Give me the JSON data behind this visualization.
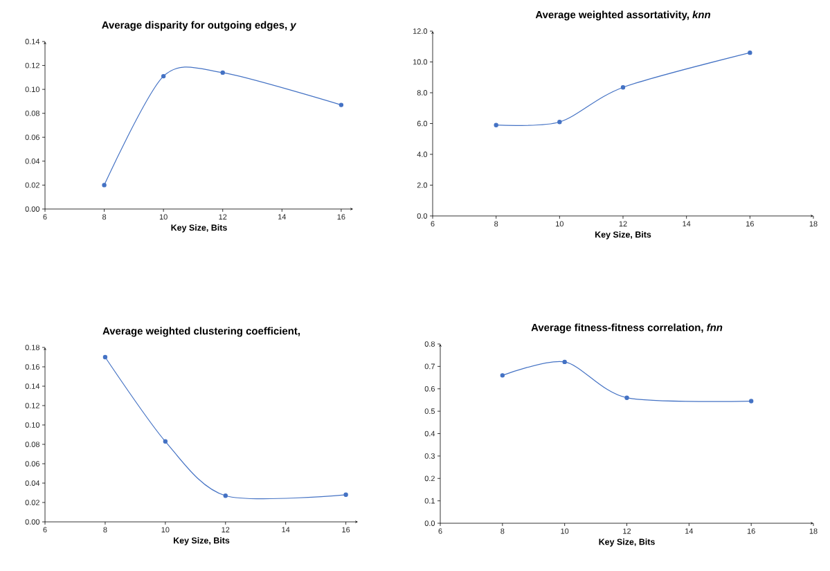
{
  "chart_data": [
    {
      "type": "line",
      "title": "Average disparity for outgoing edges, *y*",
      "xlabel": "Key Size, Bits",
      "x": [
        8,
        10,
        12,
        16
      ],
      "values": [
        0.02,
        0.111,
        0.114,
        0.087
      ],
      "color": "#4472c4",
      "marker": "circle",
      "xlim": [
        6,
        16.4
      ],
      "xticks": [
        6,
        8,
        10,
        12,
        14,
        16
      ],
      "ylim": [
        0,
        0.14
      ],
      "yticks": [
        {
          "value": 0,
          "label": "0.00"
        },
        {
          "value": 0.02,
          "label": "0.02"
        },
        {
          "value": 0.04,
          "label": "0.04"
        },
        {
          "value": 0.06,
          "label": "0.06"
        },
        {
          "value": 0.08,
          "label": "0.08"
        },
        {
          "value": 0.1,
          "label": "0.10"
        },
        {
          "value": 0.12,
          "label": "0.12"
        },
        {
          "value": 0.14,
          "label": "0.14"
        }
      ]
    },
    {
      "type": "line",
      "title": "Average weighted assortativity, *knn*",
      "xlabel": "Key Size, Bits",
      "x": [
        8,
        10,
        12,
        16
      ],
      "values": [
        5.9,
        6.1,
        8.35,
        10.6
      ],
      "color": "#4472c4",
      "marker": "circle",
      "xlim": [
        6,
        18
      ],
      "xticks": [
        6,
        8,
        10,
        12,
        14,
        16,
        18
      ],
      "ylim": [
        0,
        12
      ],
      "yticks": [
        {
          "value": 0,
          "label": "0.0"
        },
        {
          "value": 2,
          "label": "2.0"
        },
        {
          "value": 4,
          "label": "4.0"
        },
        {
          "value": 6,
          "label": "6.0"
        },
        {
          "value": 8,
          "label": "8.0"
        },
        {
          "value": 10,
          "label": "10.0"
        },
        {
          "value": 12,
          "label": "12.0"
        }
      ]
    },
    {
      "type": "line",
      "title": "Average weighted clustering coefficient,",
      "xlabel": "Key Size, Bits",
      "x": [
        8,
        10,
        12,
        16
      ],
      "values": [
        0.17,
        0.083,
        0.027,
        0.028
      ],
      "color": "#4472c4",
      "marker": "circle",
      "xlim": [
        6,
        16.4
      ],
      "xticks": [
        6,
        8,
        10,
        12,
        14,
        16
      ],
      "ylim": [
        0,
        0.18
      ],
      "yticks": [
        {
          "value": 0,
          "label": "0.00"
        },
        {
          "value": 0.02,
          "label": "0.02"
        },
        {
          "value": 0.04,
          "label": "0.04"
        },
        {
          "value": 0.06,
          "label": "0.06"
        },
        {
          "value": 0.08,
          "label": "0.08"
        },
        {
          "value": 0.1,
          "label": "0.10"
        },
        {
          "value": 0.12,
          "label": "0.12"
        },
        {
          "value": 0.14,
          "label": "0.14"
        },
        {
          "value": 0.16,
          "label": "0.16"
        },
        {
          "value": 0.18,
          "label": "0.18"
        }
      ]
    },
    {
      "type": "line",
      "title": "Average fitness-fitness correlation, *fnn*",
      "xlabel": "Key Size, Bits",
      "x": [
        8,
        10,
        12,
        16
      ],
      "values": [
        0.66,
        0.72,
        0.56,
        0.545
      ],
      "color": "#4472c4",
      "marker": "circle",
      "xlim": [
        6,
        18
      ],
      "xticks": [
        6,
        8,
        10,
        12,
        14,
        16,
        18
      ],
      "ylim": [
        0,
        0.8
      ],
      "yticks": [
        {
          "value": 0,
          "label": "0.0"
        },
        {
          "value": 0.1,
          "label": "0.1"
        },
        {
          "value": 0.2,
          "label": "0.2"
        },
        {
          "value": 0.3,
          "label": "0.3"
        },
        {
          "value": 0.4,
          "label": "0.4"
        },
        {
          "value": 0.5,
          "label": "0.5"
        },
        {
          "value": 0.6,
          "label": "0.6"
        },
        {
          "value": 0.7,
          "label": "0.7"
        },
        {
          "value": 0.8,
          "label": "0.8"
        }
      ]
    }
  ]
}
